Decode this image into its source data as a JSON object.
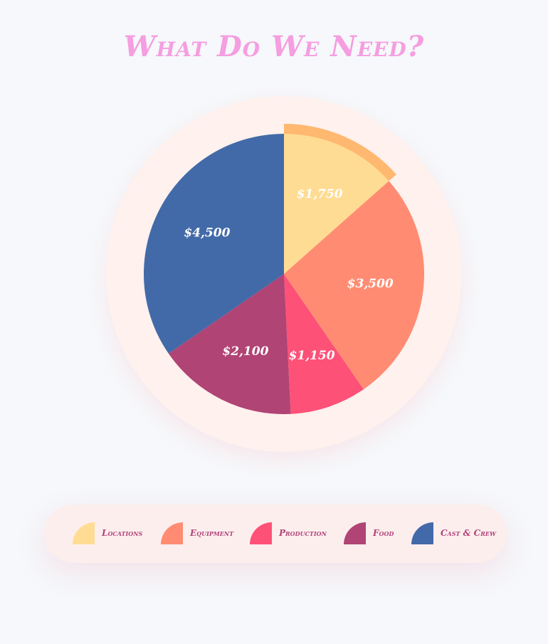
{
  "title": "What Do We Need?",
  "colors": {
    "background": "#f6f8fb",
    "title": "#f59ee0",
    "halo": "#fef1ee",
    "legend_text": "#b0447a",
    "highlight": "#ffb870"
  },
  "chart_data": {
    "type": "pie",
    "title": "What Do We Need?",
    "categories": [
      "Locations",
      "Equipment",
      "Production",
      "Food",
      "Cast & Crew"
    ],
    "values": [
      1750,
      3500,
      1150,
      2100,
      4500
    ],
    "value_labels": [
      "$1,750",
      "$3,500",
      "$1,150",
      "$2,100",
      "$4,500"
    ],
    "colors": [
      "#ffdc93",
      "#ff8c72",
      "#fe5177",
      "#b04474",
      "#436aa8"
    ],
    "highlighted_category": "Locations",
    "legend_position": "bottom"
  }
}
